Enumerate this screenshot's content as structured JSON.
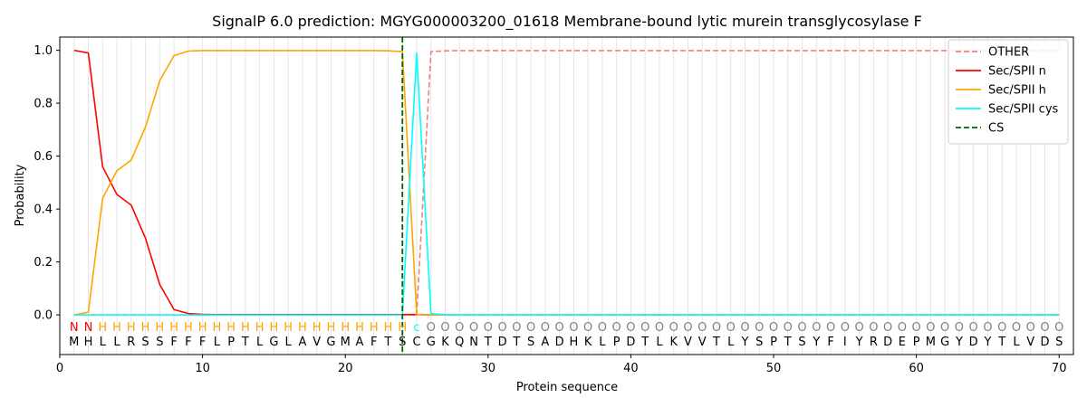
{
  "chart_data": {
    "type": "line",
    "title": "SignalP 6.0 prediction: MGYG000003200_01618 Membrane-bound lytic murein transglycosylase F",
    "xlabel": "Protein sequence",
    "ylabel": "Probability",
    "xlim": [
      0,
      71
    ],
    "ylim": [
      -0.15,
      1.05
    ],
    "x_ticks": [
      0,
      10,
      20,
      30,
      40,
      50,
      60,
      70
    ],
    "y_ticks": [
      0.0,
      0.2,
      0.4,
      0.6,
      0.8,
      1.0
    ],
    "x_tick_labels": [
      "0",
      "10",
      "20",
      "30",
      "40",
      "50",
      "60",
      "70"
    ],
    "y_tick_labels": [
      "0.0",
      "0.2",
      "0.4",
      "0.6",
      "0.8",
      "1.0"
    ],
    "legend_position": "top-right",
    "sequence": [
      "M",
      "H",
      "L",
      "L",
      "R",
      "S",
      "S",
      "F",
      "F",
      "F",
      "L",
      "P",
      "T",
      "L",
      "G",
      "L",
      "A",
      "V",
      "G",
      "M",
      "A",
      "F",
      "T",
      "S",
      "C",
      "G",
      "K",
      "Q",
      "N",
      "T",
      "D",
      "T",
      "S",
      "A",
      "D",
      "H",
      "K",
      "L",
      "P",
      "D",
      "T",
      "L",
      "K",
      "V",
      "V",
      "T",
      "L",
      "Y",
      "S",
      "P",
      "T",
      "S",
      "Y",
      "F",
      "I",
      "Y",
      "R",
      "D",
      "E",
      "P",
      "M",
      "G",
      "Y",
      "D",
      "Y",
      "T",
      "L",
      "V",
      "D",
      "S"
    ],
    "labels": [
      "N",
      "N",
      "H",
      "H",
      "H",
      "H",
      "H",
      "H",
      "H",
      "H",
      "H",
      "H",
      "H",
      "H",
      "H",
      "H",
      "H",
      "H",
      "H",
      "H",
      "H",
      "H",
      "H",
      "H",
      "c",
      "O",
      "O",
      "O",
      "O",
      "O",
      "O",
      "O",
      "O",
      "O",
      "O",
      "O",
      "O",
      "O",
      "O",
      "O",
      "O",
      "O",
      "O",
      "O",
      "O",
      "O",
      "O",
      "O",
      "O",
      "O",
      "O",
      "O",
      "O",
      "O",
      "O",
      "O",
      "O",
      "O",
      "O",
      "O",
      "O",
      "O",
      "O",
      "O",
      "O",
      "O",
      "O",
      "O",
      "O",
      "O"
    ],
    "label_colors": {
      "N": "#ff0000",
      "H": "#ffa500",
      "c": "#00ffff",
      "O": "#808080"
    },
    "series": [
      {
        "name": "OTHER",
        "color": "#f08080",
        "dash": true,
        "values": [
          0,
          0,
          0,
          0,
          0,
          0,
          0,
          0,
          0,
          0,
          0,
          0,
          0,
          0,
          0,
          0,
          0,
          0,
          0,
          0,
          0,
          0,
          0,
          0,
          0,
          0.995,
          0.998,
          0.999,
          0.999,
          0.999,
          0.999,
          0.999,
          0.999,
          0.999,
          0.999,
          0.999,
          0.999,
          0.999,
          0.999,
          0.999,
          0.999,
          0.999,
          0.999,
          0.999,
          0.999,
          0.999,
          0.999,
          0.999,
          0.999,
          0.999,
          0.999,
          0.999,
          0.999,
          0.999,
          0.999,
          0.999,
          0.999,
          0.999,
          0.999,
          0.999,
          0.999,
          0.999,
          0.999,
          0.999,
          0.999,
          0.999,
          0.999,
          0.999,
          0.999,
          0.999
        ]
      },
      {
        "name": "Sec/SPII n",
        "color": "#ff0000",
        "dash": false,
        "values": [
          1.0,
          0.99,
          0.56,
          0.455,
          0.415,
          0.29,
          0.115,
          0.02,
          0.005,
          0.002,
          0.001,
          0.001,
          0.001,
          0.001,
          0.001,
          0.001,
          0.001,
          0.001,
          0.001,
          0.001,
          0.001,
          0.001,
          0.001,
          0.001,
          0.001,
          0,
          0,
          0,
          0,
          0,
          0,
          0,
          0,
          0,
          0,
          0,
          0,
          0,
          0,
          0,
          0,
          0,
          0,
          0,
          0,
          0,
          0,
          0,
          0,
          0,
          0,
          0,
          0,
          0,
          0,
          0,
          0,
          0,
          0,
          0,
          0,
          0,
          0,
          0,
          0,
          0,
          0,
          0,
          0,
          0
        ]
      },
      {
        "name": "Sec/SPII h",
        "color": "#ffa500",
        "dash": false,
        "values": [
          0,
          0.01,
          0.44,
          0.545,
          0.585,
          0.71,
          0.885,
          0.98,
          0.997,
          0.999,
          0.999,
          0.999,
          0.999,
          0.999,
          0.999,
          0.999,
          0.999,
          0.999,
          0.999,
          0.999,
          0.999,
          0.999,
          0.998,
          0.995,
          0.002,
          0,
          0,
          0,
          0,
          0,
          0,
          0,
          0,
          0,
          0,
          0,
          0,
          0,
          0,
          0,
          0,
          0,
          0,
          0,
          0,
          0,
          0,
          0,
          0,
          0,
          0,
          0,
          0,
          0,
          0,
          0,
          0,
          0,
          0,
          0,
          0,
          0,
          0,
          0,
          0,
          0,
          0,
          0,
          0,
          0
        ]
      },
      {
        "name": "Sec/SPII cys",
        "color": "#00ffff",
        "dash": false,
        "values": [
          0,
          0,
          0,
          0,
          0,
          0,
          0,
          0,
          0,
          0,
          0,
          0,
          0,
          0,
          0,
          0,
          0,
          0,
          0,
          0,
          0,
          0,
          0,
          0,
          0.99,
          0.005,
          0,
          0,
          0,
          0,
          0,
          0,
          0,
          0,
          0,
          0,
          0,
          0,
          0,
          0,
          0,
          0,
          0,
          0,
          0,
          0,
          0,
          0,
          0,
          0,
          0,
          0,
          0,
          0,
          0,
          0,
          0,
          0,
          0,
          0,
          0,
          0,
          0,
          0,
          0,
          0,
          0,
          0,
          0,
          0
        ]
      }
    ],
    "cs": {
      "name": "CS",
      "x": 24,
      "color": "#006400"
    }
  }
}
